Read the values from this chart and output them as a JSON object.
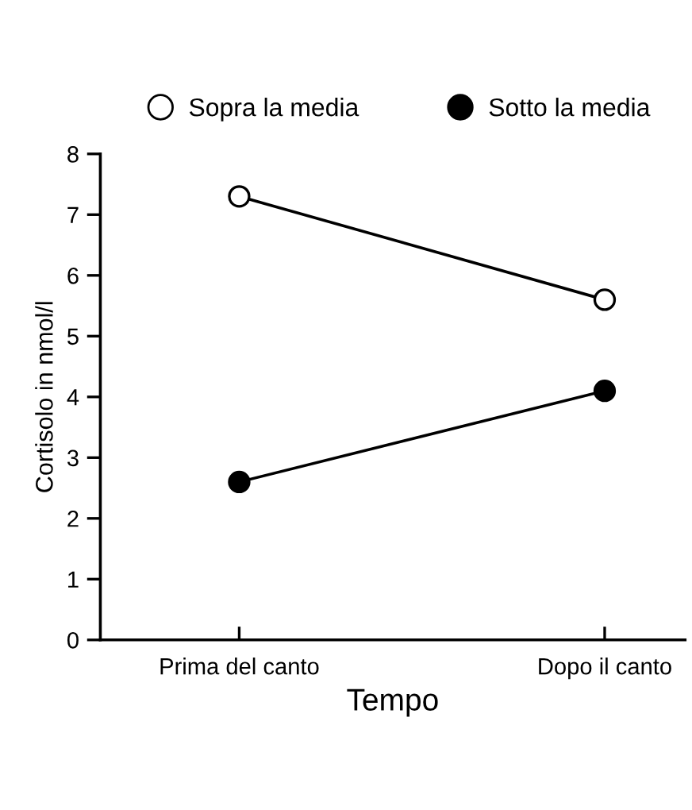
{
  "chart_data": {
    "type": "line",
    "xlabel": "Tempo",
    "ylabel": "Cortisolo in nmol/l",
    "categories": [
      "Prima del canto",
      "Dopo il canto"
    ],
    "series": [
      {
        "name": "Sopra la media",
        "color": "#000000",
        "colors": [
          "#ffffff",
          "#ffffff"
        ],
        "values": [
          7.3,
          5.6
        ]
      },
      {
        "name": "Sotto la media",
        "color": "#000000",
        "colors": [
          "#000000",
          "#000000"
        ],
        "values": [
          2.6,
          4.1
        ]
      }
    ],
    "ylim": [
      0,
      8
    ],
    "yticks": [
      0,
      1,
      2,
      3,
      4,
      5,
      6,
      7,
      8
    ],
    "grid": false,
    "legend": "top",
    "marker": "circle",
    "line_style": "solid"
  }
}
